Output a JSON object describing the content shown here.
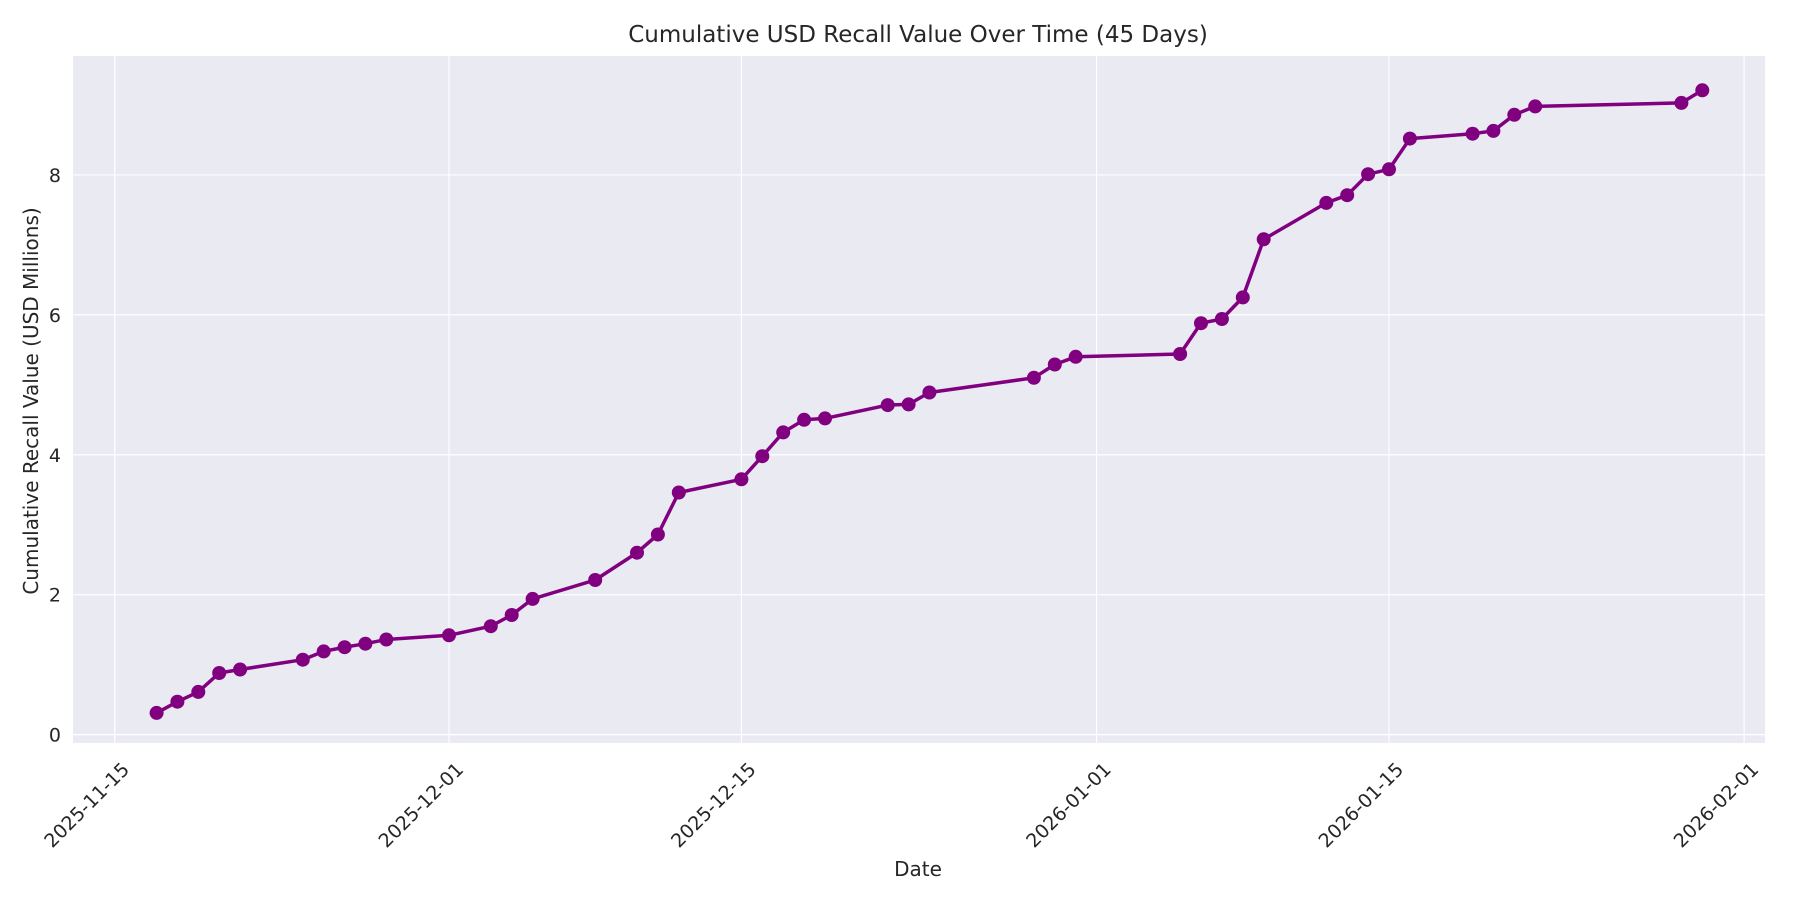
{
  "chart_data": {
    "type": "line",
    "title": "Cumulative USD Recall Value Over Time (45 Days)",
    "xlabel": "Date",
    "ylabel": "Cumulative Recall Value (USD Millions)",
    "x_ticks": [
      "2025-11-15",
      "2025-12-01",
      "2025-12-15",
      "2026-01-01",
      "2026-01-15",
      "2026-02-01"
    ],
    "y_ticks": [
      0,
      2,
      4,
      6,
      8
    ],
    "xlim": [
      "2025-11-13",
      "2026-02-02"
    ],
    "ylim": [
      -0.12,
      9.7
    ],
    "grid": true,
    "colors": {
      "line": "#800080",
      "plot_bg": "#eaeaf2",
      "grid": "#ffffff",
      "text": "#262626"
    },
    "series": [
      {
        "x": [
          "2025-11-17",
          "2025-11-18",
          "2025-11-19",
          "2025-11-20",
          "2025-11-21",
          "2025-11-24",
          "2025-11-25",
          "2025-11-26",
          "2025-11-27",
          "2025-11-28",
          "2025-12-01",
          "2025-12-03",
          "2025-12-04",
          "2025-12-05",
          "2025-12-08",
          "2025-12-10",
          "2025-12-11",
          "2025-12-12",
          "2025-12-15",
          "2025-12-16",
          "2025-12-17",
          "2025-12-18",
          "2025-12-19",
          "2025-12-22",
          "2025-12-23",
          "2025-12-24",
          "2025-12-29",
          "2025-12-30",
          "2025-12-31",
          "2026-01-05",
          "2026-01-06",
          "2026-01-07",
          "2026-01-08",
          "2026-01-09",
          "2026-01-12",
          "2026-01-13",
          "2026-01-14",
          "2026-01-15",
          "2026-01-16",
          "2026-01-19",
          "2026-01-20",
          "2026-01-21",
          "2026-01-22",
          "2026-01-29",
          "2026-01-30"
        ],
        "y": [
          0.31,
          0.47,
          0.61,
          0.88,
          0.93,
          1.07,
          1.19,
          1.25,
          1.3,
          1.36,
          1.42,
          1.55,
          1.71,
          1.94,
          2.21,
          2.6,
          2.86,
          3.46,
          3.65,
          3.98,
          4.32,
          4.5,
          4.52,
          4.71,
          4.72,
          4.89,
          5.1,
          5.29,
          5.4,
          5.44,
          5.88,
          5.94,
          6.25,
          7.08,
          7.6,
          7.71,
          8.01,
          8.08,
          8.52,
          8.59,
          8.63,
          8.86,
          8.98,
          9.03,
          9.21
        ]
      }
    ]
  }
}
